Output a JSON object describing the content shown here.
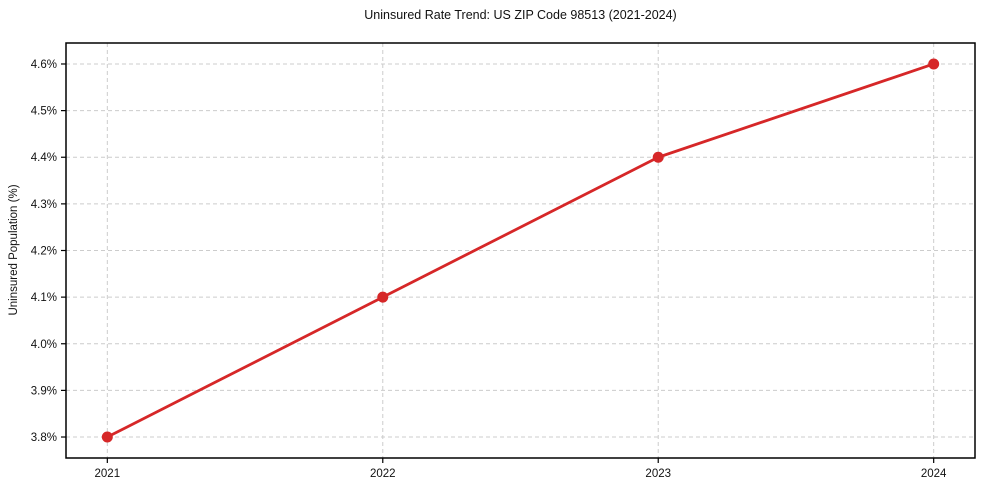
{
  "chart_data": {
    "type": "line",
    "title": "Uninsured Rate Trend: US ZIP Code 98513 (2021-2024)",
    "xlabel": "",
    "ylabel": "Uninsured Population (%)",
    "x": [
      2021,
      2022,
      2023,
      2024
    ],
    "values": [
      3.8,
      4.1,
      4.4,
      4.6
    ],
    "xtick_labels": [
      "2021",
      "2022",
      "2023",
      "2024"
    ],
    "yticks": [
      3.8,
      3.9,
      4.0,
      4.1,
      4.2,
      4.3,
      4.4,
      4.5,
      4.6
    ],
    "ytick_labels": [
      "3.8%",
      "3.9%",
      "4.0%",
      "4.1%",
      "4.2%",
      "4.3%",
      "4.4%",
      "4.5%",
      "4.6%"
    ],
    "xlim": [
      2020.85,
      2024.15
    ],
    "ylim": [
      3.755,
      4.645
    ],
    "grid": true,
    "legend": "none",
    "line_color": "#d62728",
    "marker_color": "#d62728",
    "grid_color": "#cccccc",
    "spine_color": "#000000",
    "background_color": "#ffffff"
  }
}
